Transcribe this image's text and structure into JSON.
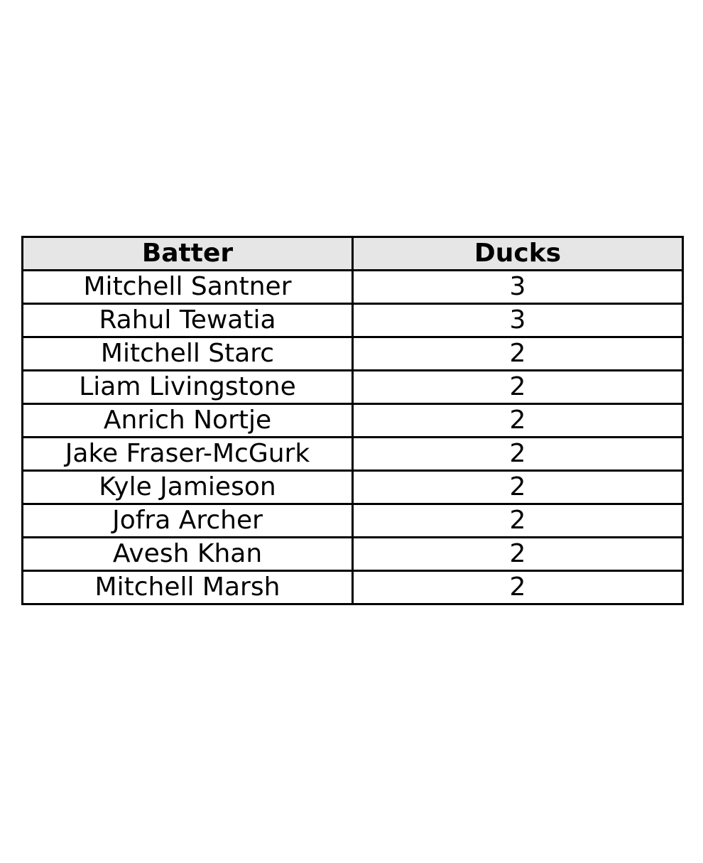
{
  "chart_data": {
    "type": "table",
    "columns": [
      "Batter",
      "Ducks"
    ],
    "rows": [
      [
        "Mitchell Santner",
        "3"
      ],
      [
        "Rahul Tewatia",
        "3"
      ],
      [
        "Mitchell Starc",
        "2"
      ],
      [
        "Liam Livingstone",
        "2"
      ],
      [
        "Anrich Nortje",
        "2"
      ],
      [
        "Jake Fraser-McGurk",
        "2"
      ],
      [
        "Kyle Jamieson",
        "2"
      ],
      [
        "Jofra Archer",
        "2"
      ],
      [
        "Avesh Khan",
        "2"
      ],
      [
        "Mitchell Marsh",
        "2"
      ]
    ]
  },
  "colors": {
    "header_background": "#e6e6e6",
    "border": "#000000",
    "text": "#000000"
  }
}
